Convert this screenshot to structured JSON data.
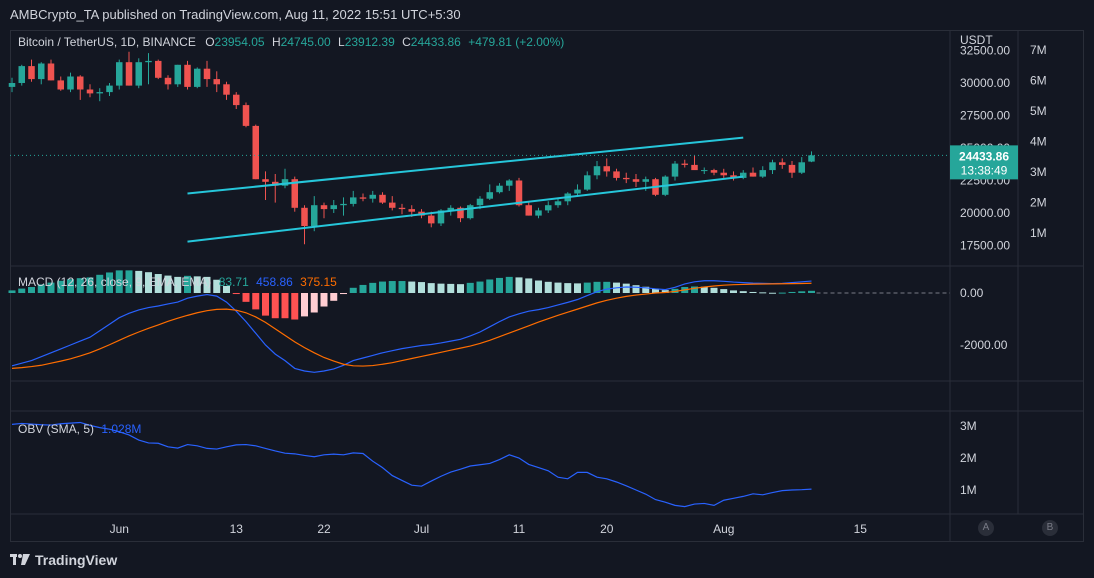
{
  "header": {
    "publisher": "AMBCrypto_TA published on TradingView.com, Aug 11, 2022 15:51 UTC+5:30"
  },
  "symbol": {
    "name": "Bitcoin / TetherUS, 1D, BINANCE",
    "open_label": "O",
    "open": "23954.05",
    "high_label": "H",
    "high": "24745.00",
    "low_label": "L",
    "low": "23912.39",
    "close_label": "C",
    "close": "24433.86",
    "change": "+479.81 (+2.00%)"
  },
  "price_axis": {
    "currency": "USDT",
    "ticks": [
      "32500.00",
      "30000.00",
      "27500.00",
      "25000.00",
      "22500.00",
      "20000.00",
      "17500.00"
    ],
    "current_price": "24433.86",
    "countdown": "13:38:49"
  },
  "volume_axis": {
    "ticks": [
      "7M",
      "6M",
      "5M",
      "4M",
      "3M",
      "2M",
      "1M"
    ]
  },
  "macd": {
    "label": "MACD (12, 26, close, 9, EMA, EMA)",
    "histogram": "83.71",
    "macd": "458.86",
    "signal": "375.15",
    "ticks": [
      "0.00",
      "-2000.00"
    ]
  },
  "obv": {
    "label": "OBV (SMA, 5)",
    "value": "1.028M",
    "ticks": [
      "3M",
      "2M",
      "1M"
    ]
  },
  "time_axis": {
    "labels": [
      "Jun",
      "13",
      "22",
      "Jul",
      "11",
      "20",
      "Aug",
      "15"
    ]
  },
  "scale_buttons": {
    "auto": "A",
    "log": "B"
  },
  "brand": {
    "name": "TradingView"
  },
  "colors": {
    "up": "#26a69a",
    "down": "#ef5350",
    "channel": "#26c6da",
    "macd_line": "#2962ff",
    "signal_line": "#ff6d00",
    "hist_up": "#26a69a",
    "hist_up_light": "#b2dfdb",
    "hist_down": "#ff5252",
    "hist_down_light": "#ffcdd2",
    "obv_line": "#2962ff",
    "background": "#131722"
  },
  "chart_data": {
    "type": "candlestick",
    "x_ticks": [
      "Jun",
      "13",
      "22",
      "Jul",
      "11",
      "20",
      "Aug",
      "15"
    ],
    "ylim": [
      16000,
      33500
    ],
    "candles_ohlc": [
      [
        29700,
        30400,
        29300,
        30000
      ],
      [
        30000,
        31400,
        29800,
        31300
      ],
      [
        31300,
        31800,
        30100,
        30300
      ],
      [
        30300,
        31600,
        29900,
        31500
      ],
      [
        31500,
        31800,
        30200,
        30200
      ],
      [
        30200,
        30500,
        29400,
        29500
      ],
      [
        29500,
        30800,
        29300,
        30500
      ],
      [
        30500,
        30600,
        28700,
        29500
      ],
      [
        29500,
        29900,
        28900,
        29200
      ],
      [
        29200,
        29600,
        28600,
        29300
      ],
      [
        29300,
        30000,
        29000,
        29800
      ],
      [
        29800,
        31800,
        29500,
        31600
      ],
      [
        31600,
        32400,
        29800,
        29800
      ],
      [
        29800,
        31900,
        29600,
        31600
      ],
      [
        31600,
        32300,
        29900,
        31700
      ],
      [
        31700,
        31800,
        30300,
        30400
      ],
      [
        30400,
        30600,
        29500,
        29900
      ],
      [
        29900,
        31400,
        29700,
        31400
      ],
      [
        31400,
        31700,
        29500,
        29700
      ],
      [
        29700,
        31200,
        29600,
        31100
      ],
      [
        31100,
        31700,
        29700,
        30300
      ],
      [
        30300,
        30900,
        29300,
        29900
      ],
      [
        29900,
        30100,
        28700,
        29100
      ],
      [
        29100,
        29300,
        28000,
        28300
      ],
      [
        28300,
        28500,
        26600,
        26700
      ],
      [
        26700,
        26800,
        22600,
        22600
      ],
      [
        22600,
        23200,
        21000,
        22400
      ],
      [
        22400,
        23000,
        20800,
        22100
      ],
      [
        22100,
        23400,
        21900,
        22600
      ],
      [
        22600,
        22800,
        20100,
        20400
      ],
      [
        20400,
        20600,
        17600,
        19000
      ],
      [
        19000,
        21300,
        18600,
        20600
      ],
      [
        20600,
        20800,
        19600,
        20300
      ],
      [
        20300,
        21000,
        20000,
        20600
      ],
      [
        20600,
        21200,
        19800,
        20700
      ],
      [
        20700,
        21700,
        20500,
        21200
      ],
      [
        21200,
        21500,
        20900,
        21100
      ],
      [
        21100,
        21700,
        20800,
        21400
      ],
      [
        21400,
        21600,
        20700,
        20800
      ],
      [
        20800,
        21300,
        20200,
        20400
      ],
      [
        20400,
        20700,
        19900,
        20300
      ],
      [
        20300,
        20600,
        19700,
        20100
      ],
      [
        20100,
        20300,
        19600,
        19800
      ],
      [
        19800,
        20100,
        18900,
        19200
      ],
      [
        19200,
        20300,
        19000,
        20200
      ],
      [
        20200,
        20600,
        19800,
        20400
      ],
      [
        20400,
        20500,
        19300,
        19600
      ],
      [
        19600,
        20700,
        19500,
        20600
      ],
      [
        20600,
        21300,
        20300,
        21100
      ],
      [
        21100,
        22200,
        21000,
        21600
      ],
      [
        21600,
        22300,
        21500,
        22100
      ],
      [
        22100,
        22600,
        21700,
        22500
      ],
      [
        22500,
        22700,
        20500,
        20600
      ],
      [
        20600,
        20900,
        19800,
        19800
      ],
      [
        19800,
        20400,
        19600,
        20200
      ],
      [
        20200,
        20900,
        20000,
        20600
      ],
      [
        20600,
        21100,
        20400,
        20900
      ],
      [
        20900,
        21600,
        20600,
        21500
      ],
      [
        21500,
        22200,
        21300,
        21800
      ],
      [
        21800,
        23200,
        21700,
        22900
      ],
      [
        22900,
        24000,
        22600,
        23600
      ],
      [
        23600,
        24200,
        22800,
        23200
      ],
      [
        23200,
        23400,
        22500,
        22700
      ],
      [
        22700,
        23100,
        22300,
        22600
      ],
      [
        22600,
        23000,
        22000,
        22400
      ],
      [
        22400,
        22800,
        21700,
        22600
      ],
      [
        22600,
        22700,
        21300,
        21400
      ],
      [
        21400,
        22900,
        21300,
        22800
      ],
      [
        22800,
        24000,
        22500,
        23800
      ],
      [
        23800,
        24100,
        23500,
        23700
      ],
      [
        23700,
        24400,
        23400,
        23300
      ],
      [
        23300,
        23500,
        23000,
        23300
      ],
      [
        23300,
        23400,
        22900,
        23100
      ],
      [
        23100,
        23400,
        22700,
        22900
      ],
      [
        22900,
        23200,
        22500,
        22700
      ],
      [
        22700,
        23300,
        22600,
        23100
      ],
      [
        23100,
        23500,
        22800,
        22800
      ],
      [
        22800,
        23600,
        22700,
        23300
      ],
      [
        23300,
        24100,
        23000,
        23900
      ],
      [
        23900,
        24200,
        23400,
        23700
      ],
      [
        23700,
        24000,
        22700,
        23100
      ],
      [
        23100,
        24300,
        23000,
        23900
      ],
      [
        23954.05,
        24745,
        23912.39,
        24433.86
      ]
    ],
    "channel_upper": [
      [
        18,
        21500
      ],
      [
        75,
        25800
      ]
    ],
    "channel_lower": [
      [
        18,
        17800
      ],
      [
        75,
        22800
      ]
    ],
    "current_price": 24433.86,
    "macd_series": {
      "macd": [
        -2800,
        -2700,
        -2600,
        -2450,
        -2300,
        -2150,
        -2000,
        -1850,
        -1700,
        -1450,
        -1200,
        -950,
        -780,
        -650,
        -560,
        -500,
        -420,
        -350,
        -200,
        -120,
        -60,
        -120,
        -350,
        -700,
        -1100,
        -1550,
        -2000,
        -2350,
        -2600,
        -2900,
        -3000,
        -3050,
        -3000,
        -2920,
        -2780,
        -2600,
        -2500,
        -2400,
        -2300,
        -2220,
        -2140,
        -2080,
        -2020,
        -1980,
        -1920,
        -1850,
        -1780,
        -1650,
        -1500,
        -1300,
        -1100,
        -920,
        -800,
        -700,
        -640,
        -560,
        -460,
        -360,
        -250,
        -100,
        50,
        150,
        200,
        230,
        220,
        200,
        160,
        130,
        220,
        350,
        430,
        470,
        470,
        450,
        420,
        400,
        380,
        370,
        360,
        370,
        400,
        430,
        458.86
      ],
      "signal": [
        -2900,
        -2870,
        -2830,
        -2780,
        -2700,
        -2620,
        -2530,
        -2420,
        -2300,
        -2150,
        -1990,
        -1820,
        -1650,
        -1500,
        -1360,
        -1230,
        -1090,
        -970,
        -860,
        -760,
        -680,
        -630,
        -620,
        -660,
        -760,
        -920,
        -1130,
        -1380,
        -1630,
        -1880,
        -2100,
        -2300,
        -2480,
        -2620,
        -2740,
        -2800,
        -2810,
        -2790,
        -2740,
        -2680,
        -2600,
        -2520,
        -2440,
        -2360,
        -2280,
        -2200,
        -2120,
        -2040,
        -1940,
        -1820,
        -1680,
        -1540,
        -1400,
        -1260,
        -1120,
        -990,
        -860,
        -740,
        -620,
        -500,
        -380,
        -280,
        -200,
        -130,
        -80,
        -40,
        0,
        20,
        60,
        120,
        180,
        230,
        270,
        300,
        320,
        330,
        340,
        345,
        350,
        355,
        360,
        365,
        375.15
      ]
    },
    "obv_series": [
      3050000,
      3080000,
      3060000,
      3040000,
      3030000,
      3070000,
      3090000,
      3110000,
      3020000,
      2950000,
      2900000,
      2820000,
      2720000,
      2560000,
      2470000,
      2460000,
      2350000,
      2310000,
      2420000,
      2380000,
      2300000,
      2280000,
      2350000,
      2410000,
      2420000,
      2380000,
      2300000,
      2220000,
      2150000,
      2130000,
      2080000,
      2040000,
      2100000,
      2120000,
      2100000,
      2160000,
      2140000,
      1900000,
      1700000,
      1450000,
      1300000,
      1150000,
      1120000,
      1280000,
      1430000,
      1560000,
      1650000,
      1750000,
      1790000,
      1830000,
      1950000,
      2100000,
      2000000,
      1800000,
      1700000,
      1600000,
      1400000,
      1350000,
      1550000,
      1550000,
      1400000,
      1350000,
      1250000,
      1130000,
      1000000,
      870000,
      700000,
      620000,
      520000,
      480000,
      560000,
      580000,
      520000,
      680000,
      740000,
      800000,
      880000,
      850000,
      920000,
      980000,
      1000000,
      1010000,
      1028000
    ]
  }
}
